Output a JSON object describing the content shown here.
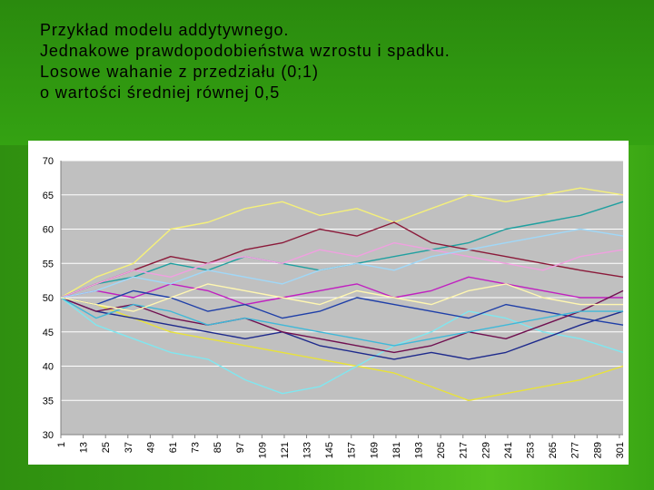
{
  "header": {
    "lines": [
      "Przykład modelu addytywnego.",
      "Jednakowe prawdopodobieństwa wzrostu i spadku.",
      "Losowe wahanie z przedziału (0;1)",
      "o  wartości średniej równej 0,5"
    ]
  },
  "chart_data": {
    "type": "line",
    "title": "",
    "xlabel": "",
    "ylabel": "",
    "ylim": [
      30,
      70
    ],
    "yticks": [
      30,
      35,
      40,
      45,
      50,
      55,
      60,
      65,
      70
    ],
    "xticks": [
      1,
      13,
      25,
      37,
      49,
      61,
      73,
      85,
      97,
      109,
      121,
      133,
      145,
      157,
      169,
      181,
      193,
      205,
      217,
      229,
      241,
      253,
      265,
      277,
      289,
      301
    ],
    "xlim": [
      1,
      303
    ],
    "grid": true,
    "plot_background": "#c0c0c0",
    "series": [
      {
        "color": "#f5f07a",
        "x": [
          1,
          20,
          40,
          60,
          80,
          100,
          120,
          140,
          160,
          180,
          200,
          220,
          240,
          260,
          280,
          303
        ],
        "values": [
          50,
          53,
          55,
          60,
          61,
          63,
          64,
          62,
          63,
          61,
          63,
          65,
          64,
          65,
          66,
          65
        ]
      },
      {
        "color": "#e8e23a",
        "x": [
          1,
          20,
          40,
          60,
          80,
          100,
          120,
          140,
          160,
          180,
          200,
          220,
          240,
          260,
          280,
          303
        ],
        "values": [
          50,
          49,
          47,
          45,
          44,
          43,
          42,
          41,
          40,
          39,
          37,
          35,
          36,
          37,
          38,
          40
        ]
      },
      {
        "color": "#7fe7f0",
        "x": [
          1,
          20,
          40,
          60,
          80,
          100,
          120,
          140,
          160,
          180,
          200,
          220,
          240,
          260,
          280,
          303
        ],
        "values": [
          50,
          46,
          44,
          42,
          41,
          38,
          36,
          37,
          40,
          43,
          45,
          48,
          47,
          45,
          44,
          42
        ]
      },
      {
        "color": "#20a0a0",
        "x": [
          1,
          20,
          40,
          60,
          80,
          100,
          120,
          140,
          160,
          180,
          200,
          220,
          240,
          260,
          280,
          303
        ],
        "values": [
          50,
          52,
          53,
          55,
          54,
          56,
          55,
          54,
          55,
          56,
          57,
          58,
          60,
          61,
          62,
          64
        ]
      },
      {
        "color": "#8b1a3a",
        "x": [
          1,
          20,
          40,
          60,
          80,
          100,
          120,
          140,
          160,
          180,
          200,
          220,
          240,
          260,
          280,
          303
        ],
        "values": [
          50,
          52,
          54,
          56,
          55,
          57,
          58,
          60,
          59,
          61,
          58,
          57,
          56,
          55,
          54,
          53
        ]
      },
      {
        "color": "#1e2a8c",
        "x": [
          1,
          20,
          40,
          60,
          80,
          100,
          120,
          140,
          160,
          180,
          200,
          220,
          240,
          260,
          280,
          303
        ],
        "values": [
          50,
          48,
          47,
          46,
          45,
          44,
          45,
          43,
          42,
          41,
          42,
          41,
          42,
          44,
          46,
          48
        ]
      },
      {
        "color": "#c020c0",
        "x": [
          1,
          20,
          40,
          60,
          80,
          100,
          120,
          140,
          160,
          180,
          200,
          220,
          240,
          260,
          280,
          303
        ],
        "values": [
          50,
          51,
          50,
          52,
          51,
          49,
          50,
          51,
          52,
          50,
          51,
          53,
          52,
          51,
          50,
          50
        ]
      },
      {
        "color": "#f0a0e0",
        "x": [
          1,
          20,
          40,
          60,
          80,
          100,
          120,
          140,
          160,
          180,
          200,
          220,
          240,
          260,
          280,
          303
        ],
        "values": [
          50,
          52,
          54,
          53,
          55,
          56,
          55,
          57,
          56,
          58,
          57,
          56,
          55,
          54,
          56,
          57
        ]
      },
      {
        "color": "#1f3fa8",
        "x": [
          1,
          20,
          40,
          60,
          80,
          100,
          120,
          140,
          160,
          180,
          200,
          220,
          240,
          260,
          280,
          303
        ],
        "values": [
          50,
          49,
          51,
          50,
          48,
          49,
          47,
          48,
          50,
          49,
          48,
          47,
          49,
          48,
          47,
          46
        ]
      },
      {
        "color": "#a0d8f8",
        "x": [
          1,
          20,
          40,
          60,
          80,
          100,
          120,
          140,
          160,
          180,
          200,
          220,
          240,
          260,
          280,
          303
        ],
        "values": [
          50,
          51,
          53,
          52,
          54,
          53,
          52,
          54,
          55,
          54,
          56,
          57,
          58,
          59,
          60,
          59
        ]
      },
      {
        "color": "#701050",
        "x": [
          1,
          20,
          40,
          60,
          80,
          100,
          120,
          140,
          160,
          180,
          200,
          220,
          240,
          260,
          280,
          303
        ],
        "values": [
          50,
          48,
          49,
          47,
          46,
          47,
          45,
          44,
          43,
          42,
          43,
          45,
          44,
          46,
          48,
          51
        ]
      },
      {
        "color": "#40b8d8",
        "x": [
          1,
          20,
          40,
          60,
          80,
          100,
          120,
          140,
          160,
          180,
          200,
          220,
          240,
          260,
          280,
          303
        ],
        "values": [
          50,
          47,
          49,
          48,
          46,
          47,
          46,
          45,
          44,
          43,
          44,
          45,
          46,
          47,
          48,
          48
        ]
      },
      {
        "color": "#fff7b0",
        "x": [
          1,
          20,
          40,
          60,
          80,
          100,
          120,
          140,
          160,
          180,
          200,
          220,
          240,
          260,
          280,
          303
        ],
        "values": [
          50,
          49,
          48,
          50,
          52,
          51,
          50,
          49,
          51,
          50,
          49,
          51,
          52,
          50,
          49,
          49
        ]
      }
    ]
  }
}
